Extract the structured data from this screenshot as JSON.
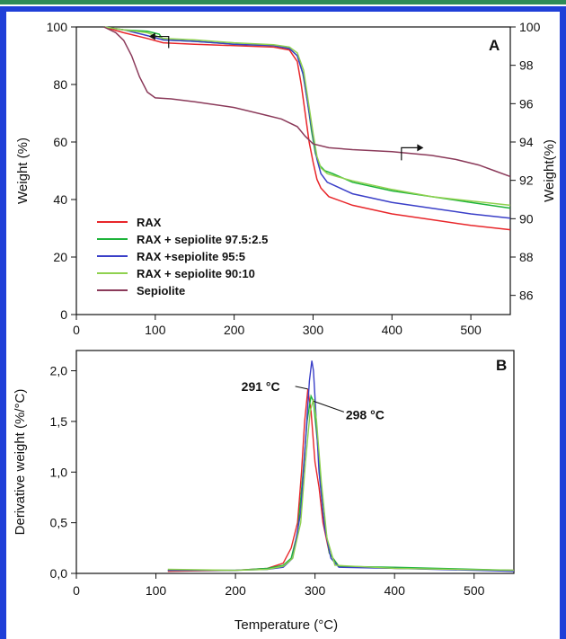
{
  "colors": {
    "frame": "#1f3fd8",
    "top_line": "#2e8b57",
    "RAX": "#e8262a",
    "sep97_5": "#1db33a",
    "sep95_5": "#3a3fc8",
    "sep90_10": "#8fd14f",
    "sepiolite": "#8b3a5a"
  },
  "chart_data": [
    {
      "type": "line",
      "panel": "A",
      "panel_label": "A",
      "xlabel": "",
      "ylabel": "Weight (%)",
      "ylabel_right": "Weight(%)",
      "xlim": [
        0,
        550
      ],
      "ylim": [
        0,
        100
      ],
      "ylim_right": [
        85,
        100
      ],
      "x_ticks": [
        0,
        100,
        200,
        300,
        400,
        500
      ],
      "y_ticks": [
        0,
        20,
        40,
        60,
        80,
        100
      ],
      "y_ticks_right": [
        86,
        88,
        90,
        92,
        94,
        96,
        98,
        100
      ],
      "legend_position": "bottom-left",
      "series": [
        {
          "name": "RAX",
          "color_key": "RAX",
          "axis": "left",
          "x": [
            35,
            60,
            90,
            110,
            150,
            200,
            250,
            270,
            280,
            285,
            290,
            295,
            300,
            305,
            310,
            320,
            350,
            400,
            450,
            500,
            550
          ],
          "y": [
            100,
            98,
            96,
            94.5,
            94,
            93.5,
            93,
            92,
            88,
            80,
            70,
            60,
            53,
            47,
            44,
            41,
            38,
            35,
            33,
            31,
            29.5
          ]
        },
        {
          "name": "RAX + sepiolite 97.5:2.5",
          "color_key": "sep97_5",
          "axis": "left",
          "x": [
            35,
            60,
            90,
            105,
            110,
            150,
            200,
            250,
            270,
            280,
            287,
            293,
            298,
            303,
            308,
            315,
            325,
            350,
            400,
            450,
            500,
            550
          ],
          "y": [
            100,
            99,
            98.5,
            97.5,
            95.5,
            95,
            94,
            93.5,
            92.5,
            90,
            84,
            74,
            64,
            56,
            52,
            50,
            49,
            46,
            43,
            41,
            39,
            37
          ]
        },
        {
          "name": "RAX +sepiolite 95:5",
          "color_key": "sep95_5",
          "axis": "left",
          "x": [
            35,
            60,
            90,
            110,
            150,
            200,
            250,
            270,
            280,
            288,
            294,
            300,
            305,
            310,
            318,
            330,
            350,
            400,
            450,
            500,
            550
          ],
          "y": [
            100,
            99,
            97,
            95.5,
            95,
            94,
            93.5,
            92.5,
            90,
            83,
            72,
            62,
            54,
            49,
            46,
            44.5,
            42,
            39,
            37,
            35,
            33.5
          ]
        },
        {
          "name": "RAX + sepiolite 90:10",
          "color_key": "sep90_10",
          "axis": "left",
          "x": [
            35,
            60,
            90,
            110,
            150,
            200,
            250,
            270,
            280,
            288,
            294,
            300,
            305,
            310,
            318,
            330,
            350,
            400,
            450,
            500,
            550
          ],
          "y": [
            100,
            99,
            98,
            96,
            95.5,
            94.5,
            93.8,
            93,
            91,
            85,
            74,
            63,
            55,
            51,
            49,
            48,
            46.5,
            43.5,
            41,
            39.5,
            38
          ]
        },
        {
          "name": "Sepiolite",
          "color_key": "sepiolite",
          "axis": "right",
          "x": [
            35,
            50,
            60,
            70,
            80,
            90,
            100,
            120,
            150,
            200,
            240,
            260,
            280,
            290,
            300,
            320,
            350,
            400,
            450,
            480,
            510,
            530,
            550
          ],
          "y": [
            100,
            99.7,
            99.3,
            98.5,
            97.4,
            96.6,
            96.3,
            96.25,
            96.1,
            95.8,
            95.4,
            95.2,
            94.8,
            94.3,
            93.9,
            93.7,
            93.6,
            93.5,
            93.3,
            93.1,
            92.8,
            92.5,
            92.2
          ]
        }
      ],
      "annotations": []
    },
    {
      "type": "line",
      "panel": "B",
      "panel_label": "B",
      "xlabel": "Temperature (°C)",
      "ylabel": "Derivative weight (%/°C)",
      "xlim": [
        0,
        550
      ],
      "ylim": [
        0,
        2.2
      ],
      "x_ticks": [
        0,
        100,
        200,
        300,
        400,
        500
      ],
      "y_ticks": [
        0,
        0.5,
        1.0,
        1.5,
        2.0
      ],
      "y_tick_labels": [
        "0,0",
        "0,5",
        "1,0",
        "1,5",
        "2,0"
      ],
      "series": [
        {
          "name": "RAX",
          "color_key": "RAX",
          "x": [
            115,
            200,
            240,
            260,
            270,
            278,
            283,
            287,
            291,
            295,
            300,
            305,
            310,
            318,
            330,
            400,
            550
          ],
          "y": [
            0.02,
            0.03,
            0.05,
            0.1,
            0.25,
            0.5,
            1.0,
            1.5,
            1.82,
            1.6,
            1.1,
            0.85,
            0.5,
            0.2,
            0.07,
            0.05,
            0.03
          ]
        },
        {
          "name": "RAX + sepiolite 97.5:2.5",
          "color_key": "sep97_5",
          "x": [
            115,
            200,
            240,
            260,
            270,
            278,
            285,
            290,
            295,
            298,
            303,
            310,
            318,
            330,
            400,
            550
          ],
          "y": [
            0.03,
            0.03,
            0.05,
            0.08,
            0.15,
            0.4,
            1.0,
            1.5,
            1.75,
            1.7,
            1.3,
            0.6,
            0.2,
            0.07,
            0.06,
            0.03
          ]
        },
        {
          "name": "RAX +sepiolite 95:5",
          "color_key": "sep95_5",
          "x": [
            115,
            200,
            240,
            260,
            272,
            282,
            288,
            293,
            296,
            298,
            301,
            305,
            312,
            320,
            330,
            400,
            550
          ],
          "y": [
            0.03,
            0.03,
            0.04,
            0.06,
            0.15,
            0.6,
            1.3,
            1.9,
            2.1,
            2.0,
            1.6,
            1.0,
            0.45,
            0.15,
            0.06,
            0.05,
            0.02
          ]
        },
        {
          "name": "RAX + sepiolite 90:10",
          "color_key": "sep90_10",
          "x": [
            115,
            200,
            240,
            260,
            272,
            282,
            288,
            294,
            298,
            302,
            308,
            315,
            325,
            400,
            550
          ],
          "y": [
            0.04,
            0.03,
            0.04,
            0.07,
            0.15,
            0.5,
            1.1,
            1.6,
            1.72,
            1.5,
            0.9,
            0.35,
            0.08,
            0.05,
            0.03
          ]
        }
      ],
      "annotations": [
        {
          "text": "291 °C",
          "x": 291,
          "y": 1.82
        },
        {
          "text": "298 °C",
          "x": 298,
          "y": 1.7
        }
      ]
    }
  ]
}
